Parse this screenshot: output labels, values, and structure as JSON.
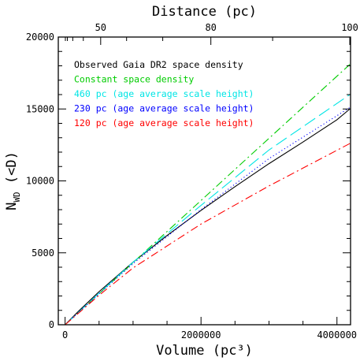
{
  "chart_data": {
    "type": "line",
    "xlabel": "Volume (pc³)",
    "ylabel_main": "N",
    "ylabel_sub": "WD",
    "ylabel_suffix": " (<D)",
    "top_axis_label": "Distance (pc)",
    "xlim": [
      -100000,
      4200000
    ],
    "ylim": [
      0,
      20000
    ],
    "x_ticks": [
      0,
      2000000,
      4000000
    ],
    "x_tick_labels": [
      "0",
      "2000000",
      "4000000"
    ],
    "y_ticks": [
      0,
      5000,
      10000,
      15000,
      20000
    ],
    "y_tick_labels": [
      "0",
      "5000",
      "10000",
      "15000",
      "20000"
    ],
    "top_ticks_distance": [
      50,
      80,
      100
    ],
    "top_tick_labels": [
      "50",
      "80",
      "100"
    ],
    "legend_placement": "top-left",
    "series": [
      {
        "name": "Observed Gaia DR2 space density",
        "color": "#000000",
        "style": "solid",
        "x": [
          0,
          200000,
          500000,
          1000000,
          1500000,
          2000000,
          2500000,
          3000000,
          3500000,
          4000000,
          4190000
        ],
        "y": [
          0,
          950,
          2300,
          4350,
          6200,
          7950,
          9600,
          11200,
          12700,
          14250,
          15000
        ]
      },
      {
        "name": "Constant space density",
        "color": "#00cc00",
        "style": "dash-dot",
        "x": [
          0,
          4190000
        ],
        "y": [
          0,
          18100
        ]
      },
      {
        "name": "460 pc (age average scale height)",
        "color": "#00e5e5",
        "style": "long-dash",
        "x": [
          0,
          500000,
          1000000,
          2000000,
          3000000,
          4190000
        ],
        "y": [
          0,
          2200,
          4350,
          8300,
          12150,
          16000
        ]
      },
      {
        "name": "230 pc (age average scale height)",
        "color": "#0000ff",
        "style": "dotted",
        "x": [
          0,
          500000,
          1000000,
          2000000,
          3000000,
          4190000
        ],
        "y": [
          0,
          2150,
          4250,
          8000,
          11550,
          15100
        ]
      },
      {
        "name": "120 pc (age average scale height)",
        "color": "#ff0000",
        "style": "dash-dot",
        "x": [
          0,
          500000,
          1000000,
          2000000,
          3000000,
          4190000
        ],
        "y": [
          0,
          2050,
          3950,
          7000,
          9650,
          12600
        ]
      }
    ]
  }
}
